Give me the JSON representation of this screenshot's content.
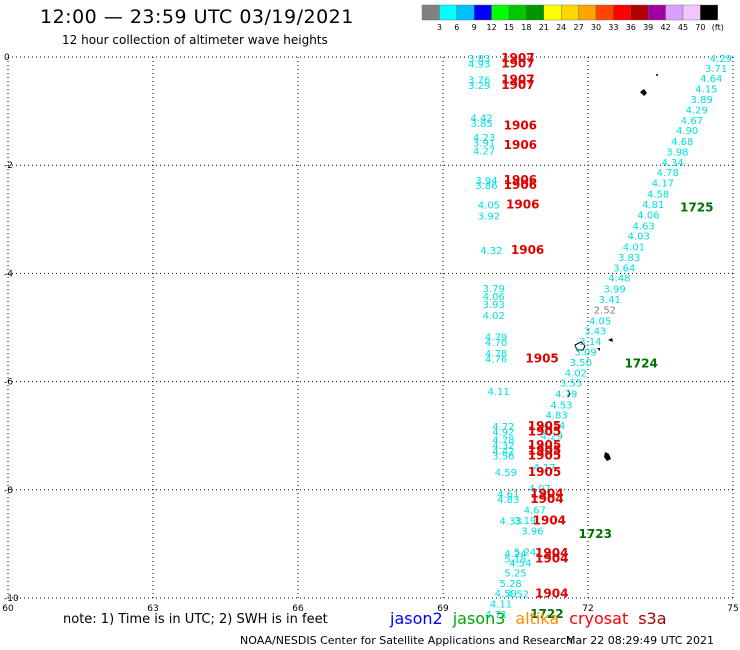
{
  "header": {
    "title": "12:00 — 23:59 UTC 03/19/2021",
    "subtitle": "12 hour collection of altimeter wave heights"
  },
  "note": "note: 1) Time is in UTC; 2) SWH is in feet",
  "satellites": [
    {
      "name": "jason2",
      "color": "#0000ff"
    },
    {
      "name": "jason3",
      "color": "#00aa00"
    },
    {
      "name": "altika",
      "color": "#ff8c00"
    },
    {
      "name": "cryosat",
      "color": "#ff0000"
    },
    {
      "name": "s3a",
      "color": "#990000"
    }
  ],
  "footer": {
    "left": "NOAA/NESDIS Center for Satellite Applications and Research",
    "right": "Mar 22 08:29:49 UTC 2021"
  },
  "colorbar": {
    "unit": "(ft)",
    "labels": [
      "3",
      "6",
      "9",
      "12",
      "15",
      "18",
      "21",
      "24",
      "27",
      "30",
      "33",
      "36",
      "39",
      "42",
      "45",
      "70"
    ],
    "colors": [
      "#808080",
      "#00ffff",
      "#00bfff",
      "#0000ff",
      "#00ff00",
      "#00c800",
      "#009600",
      "#ffff00",
      "#ffd700",
      "#ffa500",
      "#ff4500",
      "#ff0000",
      "#b00000",
      "#a000a0",
      "#d8a0ff",
      "#f0c8ff",
      "#000000"
    ]
  },
  "chart_data": {
    "type": "scatter",
    "xlim": [
      60,
      75
    ],
    "ylim": [
      -10,
      0
    ],
    "xticks": [
      "60",
      "63",
      "66",
      "69",
      "72",
      "75"
    ],
    "yticks": [
      "0",
      "-2",
      "-4",
      "-6",
      "-8",
      "-10"
    ],
    "grid": true,
    "swh_points": [
      {
        "x": 74.75,
        "y": -0.02,
        "label": "4.29",
        "color": "#00e0e0"
      },
      {
        "x": 74.65,
        "y": -0.2,
        "label": "3.71",
        "color": "#00e0e0"
      },
      {
        "x": 74.55,
        "y": -0.39,
        "label": "4.64",
        "color": "#00e0e0"
      },
      {
        "x": 74.45,
        "y": -0.58,
        "label": "4.15",
        "color": "#00e0e0"
      },
      {
        "x": 74.35,
        "y": -0.78,
        "label": "3.89",
        "color": "#00e0e0"
      },
      {
        "x": 74.25,
        "y": -0.97,
        "label": "4.29",
        "color": "#00e0e0"
      },
      {
        "x": 74.15,
        "y": -1.16,
        "label": "4.67",
        "color": "#00e0e0"
      },
      {
        "x": 74.05,
        "y": -1.35,
        "label": "4.90",
        "color": "#00e0e0"
      },
      {
        "x": 73.95,
        "y": -1.55,
        "label": "4.68",
        "color": "#00e0e0"
      },
      {
        "x": 73.85,
        "y": -1.75,
        "label": "3.98",
        "color": "#00e0e0"
      },
      {
        "x": 73.75,
        "y": -1.94,
        "label": "4.34",
        "color": "#00e0e0"
      },
      {
        "x": 73.65,
        "y": -2.13,
        "label": "4.78",
        "color": "#00e0e0"
      },
      {
        "x": 73.55,
        "y": -2.32,
        "label": "4.17",
        "color": "#00e0e0"
      },
      {
        "x": 73.45,
        "y": -2.52,
        "label": "4.58",
        "color": "#00e0e0"
      },
      {
        "x": 73.35,
        "y": -2.72,
        "label": "4.81",
        "color": "#00e0e0"
      },
      {
        "x": 73.25,
        "y": -2.91,
        "label": "4.06",
        "color": "#00e0e0"
      },
      {
        "x": 73.15,
        "y": -3.11,
        "label": "4.63",
        "color": "#00e0e0"
      },
      {
        "x": 73.05,
        "y": -3.3,
        "label": "4.03",
        "color": "#00e0e0"
      },
      {
        "x": 72.95,
        "y": -3.5,
        "label": "4.01",
        "color": "#00e0e0"
      },
      {
        "x": 72.85,
        "y": -3.7,
        "label": "3.83",
        "color": "#00e0e0"
      },
      {
        "x": 72.75,
        "y": -3.89,
        "label": "3.64",
        "color": "#00e0e0"
      },
      {
        "x": 72.65,
        "y": -4.08,
        "label": "4.48",
        "color": "#00e0e0"
      },
      {
        "x": 72.55,
        "y": -4.28,
        "label": "3.99",
        "color": "#00e0e0"
      },
      {
        "x": 72.45,
        "y": -4.47,
        "label": "3.41",
        "color": "#00e0e0"
      },
      {
        "x": 72.35,
        "y": -4.67,
        "label": "2.52",
        "color": "#808080"
      },
      {
        "x": 72.25,
        "y": -4.87,
        "label": "4.05",
        "color": "#00e0e0"
      },
      {
        "x": 72.15,
        "y": -5.06,
        "label": "3.43",
        "color": "#00e0e0"
      },
      {
        "x": 72.05,
        "y": -5.25,
        "label": "3.14",
        "color": "#00e0e0"
      },
      {
        "x": 71.95,
        "y": -5.44,
        "label": "3.09",
        "color": "#00e0e0"
      },
      {
        "x": 71.85,
        "y": -5.64,
        "label": "3.50",
        "color": "#00e0e0"
      },
      {
        "x": 71.75,
        "y": -5.83,
        "label": "4.02",
        "color": "#00e0e0"
      },
      {
        "x": 71.65,
        "y": -6.02,
        "label": "3.55",
        "color": "#00e0e0"
      },
      {
        "x": 71.55,
        "y": -6.22,
        "label": "4.79",
        "color": "#00e0e0"
      },
      {
        "x": 71.45,
        "y": -6.42,
        "label": "4.53",
        "color": "#00e0e0"
      },
      {
        "x": 71.35,
        "y": -6.61,
        "label": "4.83",
        "color": "#00e0e0"
      },
      {
        "x": 71.3,
        "y": -6.8,
        "label": "4.24",
        "color": "#00e0e0"
      },
      {
        "x": 71.25,
        "y": -7.0,
        "label": "4.29",
        "color": "#00e0e0"
      },
      {
        "x": 71.2,
        "y": -7.19,
        "label": "4.10",
        "color": "#00e0e0"
      },
      {
        "x": 71.1,
        "y": -7.58,
        "label": "4.17",
        "color": "#00e0e0"
      },
      {
        "x": 71.0,
        "y": -7.97,
        "label": "4.07",
        "color": "#00e0e0"
      },
      {
        "x": 70.9,
        "y": -8.36,
        "label": "4.67",
        "color": "#00e0e0"
      },
      {
        "x": 70.7,
        "y": -8.56,
        "label": "3.19",
        "color": "#00e0e0"
      },
      {
        "x": 70.85,
        "y": -8.75,
        "label": "3.96",
        "color": "#00e0e0"
      },
      {
        "x": 70.7,
        "y": -9.14,
        "label": "5.24",
        "color": "#00e0e0"
      },
      {
        "x": 70.6,
        "y": -9.34,
        "label": "4.54",
        "color": "#00e0e0"
      },
      {
        "x": 70.5,
        "y": -9.53,
        "label": "5.25",
        "color": "#00e0e0"
      },
      {
        "x": 70.4,
        "y": -9.72,
        "label": "5.28",
        "color": "#00e0e0"
      },
      {
        "x": 70.3,
        "y": -9.91,
        "label": "4.59",
        "color": "#00e0e0"
      },
      {
        "x": 70.2,
        "y": -10.1,
        "label": "4.11",
        "color": "#00e0e0"
      },
      {
        "x": 70.1,
        "y": -10.3,
        "label": "4.71",
        "color": "#00e0e0"
      },
      {
        "x": 69.75,
        "y": -0.02,
        "label": "3.83",
        "color": "#00e0e0"
      },
      {
        "x": 69.75,
        "y": -0.12,
        "label": "4.93",
        "color": "#00e0e0"
      },
      {
        "x": 69.75,
        "y": -0.42,
        "label": "3.76",
        "color": "#00e0e0"
      },
      {
        "x": 69.75,
        "y": -0.52,
        "label": "3.29",
        "color": "#00e0e0"
      },
      {
        "x": 69.8,
        "y": -1.12,
        "label": "4.42",
        "color": "#00e0e0"
      },
      {
        "x": 69.8,
        "y": -1.22,
        "label": "3.85",
        "color": "#00e0e0"
      },
      {
        "x": 69.85,
        "y": -1.48,
        "label": "4.23",
        "color": "#00e0e0"
      },
      {
        "x": 69.85,
        "y": -1.58,
        "label": "3.91",
        "color": "#00e0e0"
      },
      {
        "x": 69.85,
        "y": -1.73,
        "label": "4.27",
        "color": "#00e0e0"
      },
      {
        "x": 69.9,
        "y": -2.27,
        "label": "3.94",
        "color": "#00e0e0"
      },
      {
        "x": 69.9,
        "y": -2.37,
        "label": "3.86",
        "color": "#00e0e0"
      },
      {
        "x": 69.95,
        "y": -2.73,
        "label": "4.05",
        "color": "#00e0e0"
      },
      {
        "x": 69.95,
        "y": -2.93,
        "label": "3.92",
        "color": "#00e0e0"
      },
      {
        "x": 70.0,
        "y": -3.57,
        "label": "4.32",
        "color": "#00e0e0"
      },
      {
        "x": 70.05,
        "y": -4.27,
        "label": "3.79",
        "color": "#00e0e0"
      },
      {
        "x": 70.05,
        "y": -4.42,
        "label": "4.06",
        "color": "#00e0e0"
      },
      {
        "x": 70.05,
        "y": -4.57,
        "label": "3.93",
        "color": "#00e0e0"
      },
      {
        "x": 70.05,
        "y": -4.77,
        "label": "4.02",
        "color": "#00e0e0"
      },
      {
        "x": 70.1,
        "y": -5.17,
        "label": "4.79",
        "color": "#00e0e0"
      },
      {
        "x": 70.1,
        "y": -5.27,
        "label": "4.70",
        "color": "#00e0e0"
      },
      {
        "x": 70.1,
        "y": -5.47,
        "label": "4.78",
        "color": "#00e0e0"
      },
      {
        "x": 70.1,
        "y": -5.57,
        "label": "4.76",
        "color": "#00e0e0"
      },
      {
        "x": 70.15,
        "y": -6.17,
        "label": "4.11",
        "color": "#00e0e0"
      },
      {
        "x": 70.25,
        "y": -6.82,
        "label": "4.72",
        "color": "#00e0e0"
      },
      {
        "x": 70.25,
        "y": -6.92,
        "label": "4.92",
        "color": "#00e0e0"
      },
      {
        "x": 70.25,
        "y": -7.07,
        "label": "4.78",
        "color": "#00e0e0"
      },
      {
        "x": 70.25,
        "y": -7.17,
        "label": "4.32",
        "color": "#00e0e0"
      },
      {
        "x": 70.25,
        "y": -7.27,
        "label": "4.42",
        "color": "#00e0e0"
      },
      {
        "x": 70.25,
        "y": -7.37,
        "label": "3.56",
        "color": "#00e0e0"
      },
      {
        "x": 70.3,
        "y": -7.67,
        "label": "4.59",
        "color": "#00e0e0"
      },
      {
        "x": 70.35,
        "y": -8.07,
        "label": "4.61",
        "color": "#00e0e0"
      },
      {
        "x": 70.35,
        "y": -8.17,
        "label": "4.83",
        "color": "#00e0e0"
      },
      {
        "x": 70.4,
        "y": -8.57,
        "label": "4.33",
        "color": "#00e0e0"
      },
      {
        "x": 70.5,
        "y": -9.17,
        "label": "4.24",
        "color": "#00e0e0"
      },
      {
        "x": 70.5,
        "y": -9.27,
        "label": "5.15",
        "color": "#00e0e0"
      },
      {
        "x": 70.55,
        "y": -9.92,
        "label": "4.52",
        "color": "#00e0e0"
      }
    ],
    "pass_labels": [
      {
        "x": 70.55,
        "y": -0.02,
        "label": "1907",
        "color": "#e00000"
      },
      {
        "x": 70.55,
        "y": -0.12,
        "label": "1907",
        "color": "#e00000"
      },
      {
        "x": 70.55,
        "y": -0.42,
        "label": "1907",
        "color": "#e00000"
      },
      {
        "x": 70.55,
        "y": -0.52,
        "label": "1907",
        "color": "#e00000"
      },
      {
        "x": 70.6,
        "y": -1.27,
        "label": "1906",
        "color": "#e00000"
      },
      {
        "x": 70.6,
        "y": -1.63,
        "label": "1906",
        "color": "#e00000"
      },
      {
        "x": 70.6,
        "y": -2.27,
        "label": "1906",
        "color": "#e00000"
      },
      {
        "x": 70.6,
        "y": -2.37,
        "label": "1906",
        "color": "#e00000"
      },
      {
        "x": 70.65,
        "y": -2.73,
        "label": "1906",
        "color": "#e00000"
      },
      {
        "x": 70.75,
        "y": -3.57,
        "label": "1906",
        "color": "#e00000"
      },
      {
        "x": 71.05,
        "y": -5.57,
        "label": "1905",
        "color": "#e00000"
      },
      {
        "x": 71.1,
        "y": -6.82,
        "label": "1905",
        "color": "#e00000"
      },
      {
        "x": 71.1,
        "y": -6.92,
        "label": "1905",
        "color": "#e00000"
      },
      {
        "x": 71.1,
        "y": -7.17,
        "label": "1905",
        "color": "#e00000"
      },
      {
        "x": 71.1,
        "y": -7.27,
        "label": "1905",
        "color": "#e00000"
      },
      {
        "x": 71.1,
        "y": -7.37,
        "label": "1905",
        "color": "#e00000"
      },
      {
        "x": 71.1,
        "y": -7.67,
        "label": "1905",
        "color": "#e00000"
      },
      {
        "x": 71.15,
        "y": -8.07,
        "label": "1904",
        "color": "#e00000"
      },
      {
        "x": 71.15,
        "y": -8.17,
        "label": "1904",
        "color": "#e00000"
      },
      {
        "x": 71.2,
        "y": -8.57,
        "label": "1904",
        "color": "#e00000"
      },
      {
        "x": 71.25,
        "y": -9.17,
        "label": "1904",
        "color": "#e00000"
      },
      {
        "x": 71.25,
        "y": -9.27,
        "label": "1904",
        "color": "#e00000"
      },
      {
        "x": 71.25,
        "y": -9.92,
        "label": "1904",
        "color": "#e00000"
      },
      {
        "x": 74.25,
        "y": -2.78,
        "label": "1725",
        "color": "#007000"
      },
      {
        "x": 73.1,
        "y": -5.67,
        "label": "1724",
        "color": "#007000"
      },
      {
        "x": 72.15,
        "y": -8.82,
        "label": "1723",
        "color": "#007000"
      },
      {
        "x": 71.15,
        "y": -10.3,
        "label": "1722",
        "color": "#007000"
      }
    ]
  }
}
